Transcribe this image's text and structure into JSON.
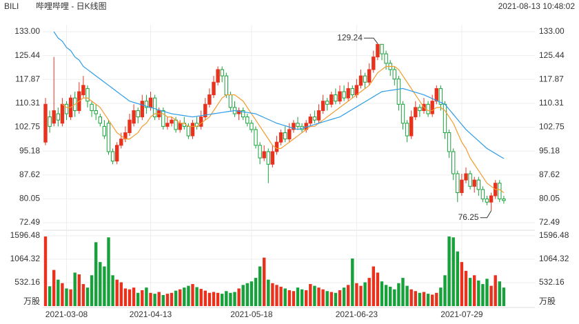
{
  "header": {
    "symbol": "BILI",
    "name": "哔哩哔哩 - 日K线图",
    "time": "2021-08-13 10:48:02"
  },
  "chart_data": {
    "type": "candlestick",
    "categories": [
      null,
      null,
      null,
      null,
      null,
      "2021-03-08",
      null,
      null,
      null,
      null,
      null,
      null,
      null,
      null,
      null,
      null,
      null,
      null,
      null,
      null,
      null,
      null,
      null,
      null,
      null,
      "2021-04-13",
      null,
      null,
      null,
      null,
      null,
      null,
      null,
      null,
      null,
      null,
      null,
      null,
      null,
      null,
      null,
      null,
      null,
      null,
      null,
      null,
      null,
      null,
      null,
      "2021-05-18",
      null,
      null,
      null,
      null,
      null,
      null,
      null,
      null,
      null,
      null,
      null,
      null,
      null,
      null,
      null,
      null,
      null,
      null,
      null,
      null,
      null,
      null,
      null,
      null,
      "2021-06-23",
      null,
      null,
      null,
      null,
      null,
      null,
      null,
      null,
      null,
      null,
      null,
      null,
      null,
      null,
      null,
      null,
      null,
      null,
      null,
      null,
      null,
      null,
      null,
      null,
      "2021-07-29",
      null,
      null,
      null,
      null,
      null,
      null,
      null,
      null,
      null,
      null
    ],
    "open": [
      98,
      106,
      104,
      107,
      104,
      110,
      106,
      112,
      108,
      113,
      115,
      110,
      108,
      106,
      103,
      104,
      95,
      92,
      97,
      99,
      101,
      104,
      108,
      106,
      111,
      109,
      112,
      106,
      108,
      103,
      104,
      105,
      102,
      104,
      103,
      100,
      104,
      103,
      106,
      110,
      113,
      117,
      121,
      119,
      113,
      109,
      107,
      108,
      106,
      104,
      102,
      97,
      93,
      95,
      91,
      95,
      98,
      101,
      99,
      102,
      104,
      103,
      102,
      104,
      106,
      105,
      108,
      111,
      110,
      113,
      111,
      114,
      112,
      115,
      113,
      116,
      119,
      117,
      121,
      125,
      129,
      126,
      123,
      121,
      118,
      110,
      104,
      100,
      106,
      109,
      108,
      110,
      107,
      111,
      115,
      110,
      101,
      95,
      88,
      82,
      86,
      88,
      84,
      86,
      83,
      80,
      79,
      81,
      85,
      80
    ],
    "high": [
      112,
      108,
      125,
      109,
      112,
      111,
      113,
      114,
      117,
      119,
      116,
      111,
      110,
      107,
      105,
      105,
      96,
      98,
      101,
      103,
      107,
      110,
      109,
      113,
      113,
      114,
      113,
      109,
      109,
      106,
      106,
      106,
      105,
      106,
      104,
      105,
      106,
      108,
      112,
      115,
      119,
      122,
      122,
      120,
      114,
      111,
      109,
      109,
      107,
      105,
      103,
      98,
      97,
      96,
      97,
      100,
      102,
      103,
      104,
      105,
      106,
      104,
      105,
      107,
      108,
      110,
      113,
      112,
      114,
      115,
      116,
      116,
      117,
      116,
      118,
      121,
      120,
      123,
      127,
      129.24,
      129,
      127,
      124,
      122,
      119,
      111,
      105,
      108,
      111,
      110,
      112,
      111,
      113,
      116,
      116,
      111,
      102,
      96,
      89,
      88,
      90,
      89,
      87,
      87,
      84,
      81,
      82,
      86,
      86,
      81
    ],
    "low": [
      97,
      101,
      103,
      103,
      103,
      105,
      105,
      106,
      107,
      112,
      109,
      106,
      105,
      103,
      99,
      94,
      91,
      91,
      96,
      98,
      100,
      103,
      104,
      105,
      107,
      108,
      105,
      105,
      102,
      102,
      103,
      101,
      101,
      102,
      99,
      99,
      102,
      102,
      105,
      109,
      112,
      116,
      117,
      112,
      108,
      106,
      105,
      105,
      103,
      101,
      96,
      91,
      92,
      85,
      90,
      94,
      97,
      98,
      98,
      101,
      102,
      101,
      101,
      103,
      104,
      104,
      107,
      108,
      109,
      110,
      110,
      111,
      111,
      112,
      112,
      115,
      115,
      116,
      120,
      124,
      124,
      121,
      119,
      116,
      108,
      102,
      98,
      99,
      105,
      106,
      107,
      106,
      106,
      110,
      108,
      99,
      93,
      86,
      79,
      81,
      85,
      83,
      82,
      81,
      79,
      78,
      76.25,
      80,
      79,
      78.5
    ],
    "close": [
      110,
      103,
      108,
      105,
      110,
      107,
      112,
      108,
      114,
      116,
      111,
      108,
      107,
      104,
      100,
      95,
      92,
      97,
      99,
      101,
      105,
      108,
      106,
      111,
      109,
      112,
      106,
      108,
      103,
      104,
      105,
      102,
      104,
      103,
      100,
      104,
      103,
      106,
      110,
      113,
      117,
      121,
      119,
      113,
      109,
      107,
      108,
      106,
      104,
      102,
      97,
      93,
      95,
      91,
      95,
      98,
      101,
      99,
      102,
      104,
      103,
      102,
      104,
      106,
      105,
      108,
      111,
      110,
      113,
      111,
      114,
      112,
      115,
      113,
      116,
      119,
      117,
      121,
      125,
      129,
      126,
      123,
      121,
      118,
      110,
      104,
      100,
      106,
      109,
      108,
      110,
      107,
      111,
      115,
      110,
      101,
      95,
      88,
      82,
      86,
      88,
      84,
      86,
      83,
      80,
      79,
      81,
      85,
      80,
      79.5
    ],
    "volume": [
      1580,
      450,
      820,
      600,
      520,
      400,
      380,
      760,
      720,
      500,
      420,
      700,
      1450,
      1000,
      900,
      1560,
      700,
      600,
      540,
      400,
      380,
      420,
      300,
      360,
      420,
      300,
      280,
      320,
      250,
      280,
      300,
      350,
      380,
      420,
      460,
      500,
      430,
      390,
      350,
      300,
      320,
      300,
      280,
      340,
      300,
      320,
      400,
      480,
      520,
      560,
      640,
      900,
      1100,
      600,
      520,
      480,
      440,
      400,
      360,
      340,
      420,
      380,
      360,
      500,
      460,
      420,
      380,
      340,
      320,
      300,
      360,
      420,
      480,
      1080,
      520,
      460,
      540,
      640,
      900,
      760,
      560,
      480,
      440,
      380,
      520,
      640,
      460,
      380,
      340,
      300,
      320,
      280,
      260,
      300,
      420,
      700,
      1580,
      1560,
      1240,
      1000,
      800,
      640,
      700,
      580,
      500,
      620,
      460,
      700,
      560,
      420
    ],
    "up_color": "#e8321e",
    "down_color": "#17a13a",
    "series": [
      {
        "color": "#f39a2c",
        "values": [
          null,
          null,
          null,
          null,
          110,
          109,
          109,
          110,
          111,
          112,
          112,
          111,
          110,
          109,
          107,
          105,
          103,
          101,
          100,
          99,
          99,
          100,
          101,
          103,
          104,
          106,
          107,
          107,
          107,
          106,
          106,
          105,
          104,
          104,
          103,
          103,
          103,
          104,
          105,
          106,
          108,
          110,
          112,
          113,
          113,
          113,
          112,
          111,
          109,
          107,
          105,
          103,
          101,
          99,
          97,
          96,
          96,
          97,
          98,
          99,
          100,
          101,
          102,
          103,
          103,
          104,
          105,
          106,
          107,
          108,
          109,
          110,
          111,
          112,
          113,
          114,
          115,
          116,
          118,
          120,
          121,
          122,
          122,
          122,
          121,
          119,
          117,
          115,
          113,
          111,
          109,
          108,
          108,
          109,
          109,
          108,
          106,
          104,
          101,
          98,
          96,
          93,
          91,
          89,
          87,
          85,
          84,
          83,
          83,
          82
        ]
      },
      {
        "color": "#2c9be8",
        "values": [
          null,
          null,
          133,
          131,
          130,
          128,
          127,
          125,
          124,
          122,
          121,
          120,
          119,
          118,
          117,
          116,
          115,
          114,
          113,
          112,
          111,
          110.6,
          110.2,
          109.8,
          109.4,
          109,
          108.6,
          108.2,
          107.8,
          107.4,
          107,
          106.8,
          106.6,
          106.4,
          106.2,
          106,
          106.2,
          106.4,
          106.6,
          106.8,
          107,
          107.2,
          107.4,
          107.6,
          107.8,
          108,
          107.8,
          107.6,
          107.4,
          107.2,
          107,
          106.4,
          105.8,
          105.2,
          104.6,
          104,
          103.6,
          103.2,
          102.8,
          102.4,
          102,
          102.4,
          102.8,
          103.2,
          103.6,
          104,
          104.4,
          104.8,
          105.2,
          105.6,
          106,
          106.8,
          107.6,
          108.4,
          109.2,
          110,
          110.8,
          111.6,
          112.4,
          113.2,
          114,
          114.2,
          114.4,
          114.6,
          114.8,
          115,
          114.6,
          114.2,
          113.8,
          113.4,
          113,
          112.4,
          111.8,
          111.2,
          110.6,
          110,
          108.4,
          106.8,
          105.2,
          103.6,
          102,
          100.8,
          99.6,
          98.4,
          97.2,
          96,
          95.2,
          94.4,
          93.6,
          92.8
        ]
      }
    ],
    "annotations": [
      "129.24",
      "76.25"
    ],
    "ylim": [
      72.49,
      133
    ],
    "yticks": [
      {
        "value": 133,
        "label": "133.00"
      },
      125.44,
      117.87,
      110.31,
      102.75,
      95.18,
      87.62,
      80.05,
      72.49
    ],
    "volume_unit": "万股",
    "vlim": [
      0,
      1596.48
    ],
    "vticks": [
      532.16,
      1064.32,
      1596.48
    ],
    "grid": true
  }
}
